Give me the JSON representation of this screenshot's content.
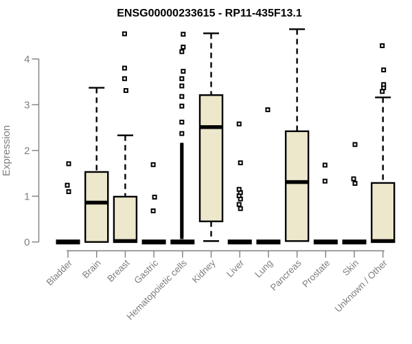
{
  "chart_data": {
    "type": "boxplot",
    "title": "ENSG00000233615 - RP11-435F13.1",
    "ylabel": "Expression",
    "xlabel": "",
    "ylim": [
      0,
      4.7
    ],
    "yticks": [
      0,
      1,
      2,
      3,
      4
    ],
    "grid": false,
    "legend": "none",
    "categories": [
      "Bladder",
      "Brain",
      "Breast",
      "Gastric",
      "Hematopoietic cells",
      "Kidney",
      "Liver",
      "Lung",
      "Pancreas",
      "Prostate",
      "Skin",
      "Unknown / Other"
    ],
    "series": [
      {
        "category": "Bladder",
        "collapsed": true,
        "q1": 0,
        "median": 0,
        "q3": 0,
        "whisker_low": 0,
        "whisker_high": 0,
        "outliers": [
          1.1,
          1.24,
          1.71
        ]
      },
      {
        "category": "Brain",
        "collapsed": false,
        "q1": 0,
        "median": 0.86,
        "q3": 1.53,
        "whisker_low": 0,
        "whisker_high": 3.37,
        "outliers": []
      },
      {
        "category": "Breast",
        "collapsed": false,
        "q1": 0,
        "median": 0.02,
        "q3": 0.99,
        "whisker_low": 0,
        "whisker_high": 2.33,
        "outliers": [
          3.31,
          3.57,
          3.8,
          4.55
        ]
      },
      {
        "category": "Gastric",
        "collapsed": true,
        "q1": 0,
        "median": 0,
        "q3": 0,
        "whisker_low": 0,
        "whisker_high": 0,
        "outliers": [
          0.68,
          0.98,
          1.69
        ]
      },
      {
        "category": "Hematopoietic cells",
        "collapsed": true,
        "q1": 0,
        "median": 0,
        "q3": 0,
        "whisker_low": 0,
        "whisker_high": 0,
        "outliers": [
          2.37,
          2.62,
          2.97,
          3.18,
          3.41,
          3.57,
          3.73,
          4.16,
          4.26,
          4.54
        ],
        "dense_outlier_band": [
          0.1,
          2.16
        ]
      },
      {
        "category": "Kidney",
        "collapsed": false,
        "q1": 0.45,
        "median": 2.51,
        "q3": 3.21,
        "whisker_low": 0.02,
        "whisker_high": 4.56,
        "outliers": []
      },
      {
        "category": "Liver",
        "collapsed": true,
        "q1": 0,
        "median": 0,
        "q3": 0,
        "whisker_low": 0,
        "whisker_high": 0,
        "outliers": [
          0.73,
          0.82,
          0.94,
          1.01,
          1.08,
          1.15,
          1.73,
          2.58
        ]
      },
      {
        "category": "Lung",
        "collapsed": true,
        "q1": 0,
        "median": 0,
        "q3": 0,
        "whisker_low": 0,
        "whisker_high": 0,
        "outliers": [
          2.89
        ]
      },
      {
        "category": "Pancreas",
        "collapsed": false,
        "q1": 0.02,
        "median": 1.31,
        "q3": 2.42,
        "whisker_low": 0.02,
        "whisker_high": 4.65,
        "outliers": []
      },
      {
        "category": "Prostate",
        "collapsed": true,
        "q1": 0,
        "median": 0,
        "q3": 0,
        "whisker_low": 0,
        "whisker_high": 0,
        "outliers": [
          1.33,
          1.68
        ]
      },
      {
        "category": "Skin",
        "collapsed": true,
        "q1": 0,
        "median": 0,
        "q3": 0,
        "whisker_low": 0,
        "whisker_high": 0,
        "outliers": [
          1.28,
          1.38,
          2.13
        ]
      },
      {
        "category": "Unknown / Other",
        "collapsed": false,
        "q1": 0,
        "median": 0.02,
        "q3": 1.29,
        "whisker_low": 0,
        "whisker_high": 3.16,
        "outliers": [
          3.29,
          3.37,
          3.44,
          3.76,
          4.29
        ]
      }
    ],
    "colors": {
      "box_fill": "#EDE7CB",
      "box_stroke": "#000000",
      "median": "#000000",
      "whisker": "#000000",
      "outlier_stroke": "#000000",
      "axis": "#7E7E7E",
      "tick_label": "#7E7E7E",
      "title": "#000000",
      "background": "#FFFFFF"
    }
  }
}
